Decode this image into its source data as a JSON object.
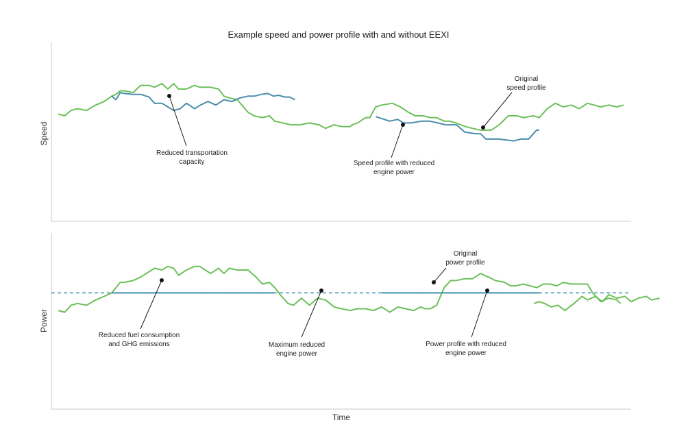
{
  "chart_data": [
    {
      "id": "speed",
      "type": "line",
      "title": "Example speed and power profile with and without EEXI",
      "ylabel": "Speed",
      "xlabel": "",
      "ylim": [
        0,
        100
      ],
      "grid": false,
      "series": [
        {
          "key": "original",
          "color": "#6bbf59",
          "points": [
            [
              0,
              60
            ],
            [
              1.2,
              59
            ],
            [
              2.4,
              62
            ],
            [
              3.6,
              63
            ],
            [
              5.3,
              62
            ],
            [
              7,
              65
            ],
            [
              8.6,
              67
            ],
            [
              10,
              70
            ],
            [
              10.8,
              71
            ],
            [
              11.6,
              73
            ],
            [
              12.4,
              73
            ],
            [
              14,
              72
            ],
            [
              15.4,
              76
            ],
            [
              17,
              76
            ],
            [
              18,
              75
            ],
            [
              19.4,
              77
            ],
            [
              20.5,
              74
            ],
            [
              21.6,
              77
            ],
            [
              22.5,
              74
            ],
            [
              24,
              74
            ],
            [
              25.5,
              76
            ],
            [
              26.5,
              75
            ],
            [
              28.5,
              75
            ],
            [
              30,
              74
            ],
            [
              31,
              70
            ],
            [
              32,
              69
            ],
            [
              33.5,
              68
            ],
            [
              35.5,
              61
            ],
            [
              36.6,
              59
            ],
            [
              38.2,
              58
            ],
            [
              39.5,
              59
            ],
            [
              40.5,
              56
            ],
            [
              42,
              55
            ],
            [
              43.5,
              54
            ],
            [
              45.3,
              54
            ],
            [
              47,
              55
            ],
            [
              48.8,
              54
            ],
            [
              50,
              52
            ],
            [
              51.6,
              54
            ],
            [
              53,
              53
            ],
            [
              54.6,
              53
            ],
            [
              55,
              54
            ],
            [
              56,
              55
            ],
            [
              57.5,
              58
            ],
            [
              58.3,
              58
            ],
            [
              59.4,
              64
            ],
            [
              60.5,
              65
            ],
            [
              62.5,
              66
            ],
            [
              64,
              64
            ],
            [
              65.5,
              61
            ],
            [
              66.8,
              59
            ],
            [
              68.3,
              59
            ],
            [
              69.6,
              58
            ],
            [
              70.8,
              58
            ],
            [
              72.2,
              56
            ],
            [
              73.2,
              56
            ],
            [
              74.4,
              55
            ],
            [
              76.2,
              53
            ],
            [
              77.5,
              52
            ],
            [
              79,
              51
            ],
            [
              80,
              51
            ],
            [
              81,
              51
            ],
            [
              82.5,
              54
            ],
            [
              84.2,
              59
            ],
            [
              85.9,
              59
            ],
            [
              87,
              58
            ],
            [
              88.9,
              59
            ],
            [
              90,
              58
            ],
            [
              91.5,
              63
            ],
            [
              93,
              66
            ],
            [
              94.5,
              64
            ],
            [
              96,
              65
            ],
            [
              97.5,
              63
            ],
            [
              99,
              66
            ],
            [
              100.3,
              65
            ],
            [
              101.4,
              64
            ],
            [
              103,
              65
            ],
            [
              104.5,
              64
            ],
            [
              105.8,
              65
            ]
          ]
        },
        {
          "key": "reduced",
          "color": "#4a8cab",
          "points": [
            [
              10,
              70
            ],
            [
              10.8,
              68
            ],
            [
              11.6,
              72
            ],
            [
              12.4,
              71.5
            ],
            [
              14,
              71
            ],
            [
              15.4,
              71
            ],
            [
              17,
              69.5
            ],
            [
              18,
              66
            ],
            [
              19.4,
              66
            ],
            [
              20.5,
              64
            ],
            [
              21.6,
              62
            ],
            [
              22.8,
              63
            ],
            [
              24,
              66
            ],
            [
              25.5,
              63
            ],
            [
              26.6,
              65
            ],
            [
              28,
              67
            ],
            [
              29.5,
              65
            ],
            [
              31,
              68
            ],
            [
              32.5,
              67
            ],
            [
              34,
              69
            ],
            [
              35.5,
              70
            ],
            [
              36.7,
              70
            ],
            [
              38,
              71
            ],
            [
              39.2,
              71.5
            ],
            [
              40.3,
              70
            ],
            [
              41.2,
              70.5
            ],
            [
              42.4,
              69.5
            ],
            [
              43.3,
              69.5
            ],
            [
              44.3,
              68
            ]
          ]
        },
        {
          "key": "reduced2",
          "color": "#4a8cab",
          "points": [
            [
              59.4,
              58.5
            ],
            [
              60.5,
              57.5
            ],
            [
              62,
              56
            ],
            [
              63.5,
              57
            ],
            [
              64.6,
              55
            ],
            [
              66,
              55
            ],
            [
              68,
              56
            ],
            [
              69.5,
              56
            ],
            [
              71,
              55
            ],
            [
              72.5,
              54
            ],
            [
              73.5,
              54
            ],
            [
              74.5,
              54
            ],
            [
              76,
              50
            ],
            [
              78,
              49
            ],
            [
              79,
              49
            ],
            [
              80,
              46
            ],
            [
              81.2,
              46
            ],
            [
              82.4,
              46
            ],
            [
              83.8,
              45.5
            ],
            [
              85.2,
              45
            ],
            [
              86.6,
              46
            ],
            [
              88,
              46
            ],
            [
              89.5,
              51
            ],
            [
              90,
              51
            ]
          ]
        }
      ],
      "annotations": [
        {
          "lines": [
            "Reduced transportation",
            "capacity"
          ]
        },
        {
          "lines": [
            "Original",
            "speed profile"
          ]
        },
        {
          "lines": [
            "Speed profile with reduced",
            "engine power"
          ]
        }
      ]
    },
    {
      "id": "power",
      "type": "line",
      "title": "",
      "ylabel": "Power",
      "xlabel": "Time",
      "ylim": [
        0,
        100
      ],
      "grid": false,
      "reference_line": {
        "value": 66,
        "color": "#3e8fb0",
        "style": "dashed"
      },
      "series": [
        {
          "key": "original",
          "color": "#6bbf59",
          "points": [
            [
              0,
              56
            ],
            [
              1.2,
              55
            ],
            [
              2.4,
              59
            ],
            [
              3.6,
              60
            ],
            [
              5.3,
              59
            ],
            [
              7,
              62
            ],
            [
              8.6,
              64
            ],
            [
              10,
              66
            ],
            [
              10.8,
              69
            ],
            [
              11.6,
              72
            ],
            [
              12.4,
              72
            ],
            [
              14,
              73
            ],
            [
              15.4,
              75
            ],
            [
              17,
              78
            ],
            [
              18,
              80
            ],
            [
              19.4,
              79
            ],
            [
              20.5,
              81
            ],
            [
              21.6,
              80
            ],
            [
              22.5,
              76
            ],
            [
              24,
              79
            ],
            [
              25.5,
              81
            ],
            [
              26.5,
              81
            ],
            [
              28.5,
              77
            ],
            [
              30,
              80
            ],
            [
              31,
              77
            ],
            [
              32,
              80
            ],
            [
              33.5,
              79
            ],
            [
              35.5,
              79
            ],
            [
              37,
              75
            ],
            [
              38.2,
              71
            ],
            [
              39.5,
              72
            ],
            [
              40.5,
              69
            ],
            [
              41.5,
              65
            ],
            [
              43,
              60
            ],
            [
              44,
              59
            ],
            [
              45.5,
              63
            ],
            [
              47,
              59
            ],
            [
              48.5,
              63
            ],
            [
              50,
              62
            ],
            [
              51.6,
              58
            ],
            [
              53,
              57
            ],
            [
              54.6,
              56
            ],
            [
              56,
              57
            ],
            [
              57.5,
              57
            ],
            [
              59,
              56
            ],
            [
              60.5,
              58
            ],
            [
              62,
              55
            ],
            [
              63.6,
              58
            ],
            [
              65,
              57
            ],
            [
              66.5,
              56
            ],
            [
              67.8,
              58
            ],
            [
              68.6,
              57
            ],
            [
              69.6,
              57
            ],
            [
              70.8,
              59
            ],
            [
              72.2,
              69
            ],
            [
              73.4,
              73
            ],
            [
              74.4,
              73
            ],
            [
              76,
              74
            ],
            [
              77.5,
              74
            ],
            [
              79,
              77
            ],
            [
              80.5,
              75
            ],
            [
              81.8,
              73
            ],
            [
              83.5,
              72
            ],
            [
              84.6,
              70
            ],
            [
              85.6,
              70
            ],
            [
              87,
              71
            ],
            [
              88.3,
              70
            ],
            [
              89.5,
              69
            ],
            [
              90.8,
              71
            ],
            [
              92,
              71
            ],
            [
              93.3,
              70
            ],
            [
              94.5,
              72
            ],
            [
              96,
              71
            ],
            [
              97.5,
              71
            ],
            [
              99,
              71
            ],
            [
              100,
              66
            ],
            [
              101.5,
              61
            ],
            [
              103,
              63
            ],
            [
              104.5,
              62
            ],
            [
              105.2,
              60
            ]
          ]
        },
        {
          "key": "power_tail",
          "color": "#6bbf59",
          "points": [
            [
              89,
              60
            ],
            [
              90,
              61
            ],
            [
              91,
              60
            ],
            [
              92.2,
              58
            ],
            [
              93.5,
              59
            ],
            [
              94.8,
              56
            ],
            [
              96.5,
              60
            ],
            [
              98,
              64
            ],
            [
              99,
              62
            ],
            [
              100.5,
              64
            ],
            [
              101.8,
              61
            ],
            [
              103,
              65
            ],
            [
              104.5,
              63
            ],
            [
              106,
              64
            ],
            [
              107.2,
              61
            ],
            [
              108.5,
              63
            ],
            [
              110,
              64
            ],
            [
              111,
              62
            ],
            [
              112.5,
              63
            ]
          ]
        },
        {
          "key": "reduced",
          "color": "#3e8fb0",
          "points": [
            [
              10,
              66
            ],
            [
              40.5,
              66
            ]
          ]
        },
        {
          "key": "reduced2",
          "color": "#3e8fb0",
          "points": [
            [
              60.5,
              66
            ],
            [
              90,
              66
            ]
          ]
        }
      ],
      "annotations": [
        {
          "lines": [
            "Reduced fuel consumption",
            "and GHG emissions"
          ]
        },
        {
          "lines": [
            "Maximum reduced",
            "engine power"
          ]
        },
        {
          "lines": [
            "Original",
            "power profile"
          ]
        },
        {
          "lines": [
            "Power profile with reduced",
            "engine power"
          ]
        }
      ]
    }
  ]
}
